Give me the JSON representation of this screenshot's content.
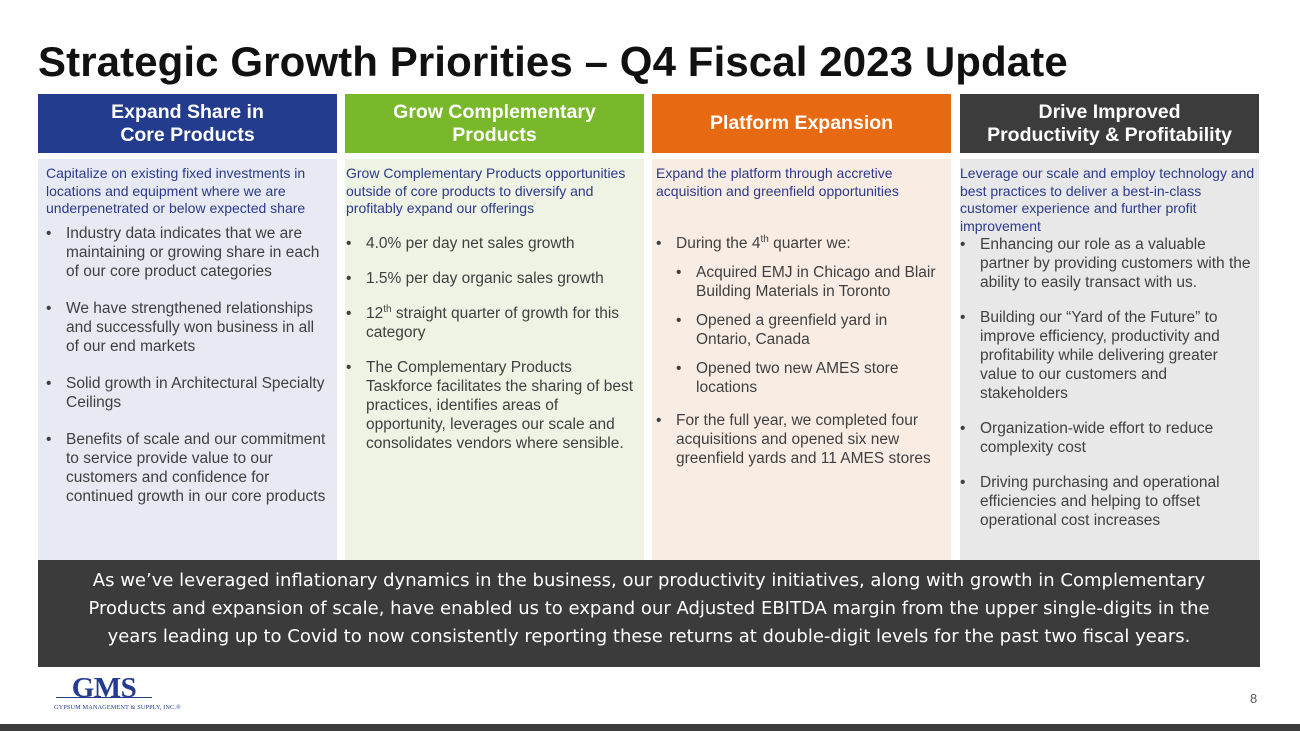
{
  "title": "Strategic Growth Priorities – Q4 Fiscal 2023 Update",
  "columns": [
    {
      "header_lines": [
        "Expand Share in",
        "Core Products"
      ],
      "header_color": "#233c8e",
      "intro": "Capitalize on existing fixed investments in locations and equipment where we are underpenetrated or below expected share",
      "bullets": [
        "Industry data indicates that we are maintaining or growing share in each of our core product categories",
        "We have strengthened relationships and successfully won business in all of our end markets",
        "Solid growth in Architectural Specialty Ceilings",
        "Benefits of scale and our commitment to service provide value to our customers and confidence for continued growth in our core products"
      ]
    },
    {
      "header_lines": [
        "Grow Complementary",
        "Products"
      ],
      "header_color": "#78b82a",
      "intro": "Grow Complementary Products opportunities outside of core products to diversify and profitably expand our offerings",
      "bullets": [
        "4.0% per day net sales growth",
        "1.5% per day organic sales growth",
        {
          "prefix": "12",
          "sup": "th",
          "suffix": " straight quarter of growth for this category"
        },
        "The Complementary Products Taskforce facilitates the sharing of best practices, identifies areas of opportunity, leverages our scale and consolidates vendors where sensible."
      ]
    },
    {
      "header_lines": [
        "Platform Expansion"
      ],
      "header_color": "#e76a12",
      "intro": "Expand the platform through accretive acquisition and greenfield opportunities",
      "bullets": [
        {
          "prefix": "During the 4",
          "sup": "th",
          "suffix": " quarter we:"
        },
        "Acquired EMJ in Chicago and Blair Building Materials in Toronto",
        "Opened a greenfield yard in Ontario, Canada",
        "Opened two new AMES store locations",
        "For the full year, we completed four acquisitions and opened six new greenfield yards and 11 AMES stores"
      ]
    },
    {
      "header_lines": [
        "Drive Improved",
        "Productivity & Profitability"
      ],
      "header_color": "#3c3c3c",
      "intro": "Leverage our scale and employ technology and best practices to deliver a best-in-class customer experience and further profit improvement",
      "bullets": [
        "Enhancing our role as a valuable partner by providing customers with the ability to easily transact with us.",
        "Building our “Yard of the Future” to improve efficiency, productivity and profitability while delivering greater value to our customers and stakeholders",
        "Organization-wide effort to reduce complexity cost",
        "Driving purchasing and operational efficiencies and helping to offset operational cost increases"
      ]
    }
  ],
  "banner": {
    "lines": [
      "As we’ve leveraged inflationary dynamics in the business, our productivity initiatives, along with growth in Complementary",
      "Products and expansion of scale, have enabled us to expand our Adjusted EBITDA margin from the upper single-digits in the",
      "years leading up to Covid to now consistently reporting these returns at double-digit levels for the past two fiscal years."
    ]
  },
  "logo": {
    "mark": "GMS",
    "subtitle": "GYPSUM MANAGEMENT & SUPPLY, INC.",
    "reg": "®"
  },
  "page_number": "8"
}
